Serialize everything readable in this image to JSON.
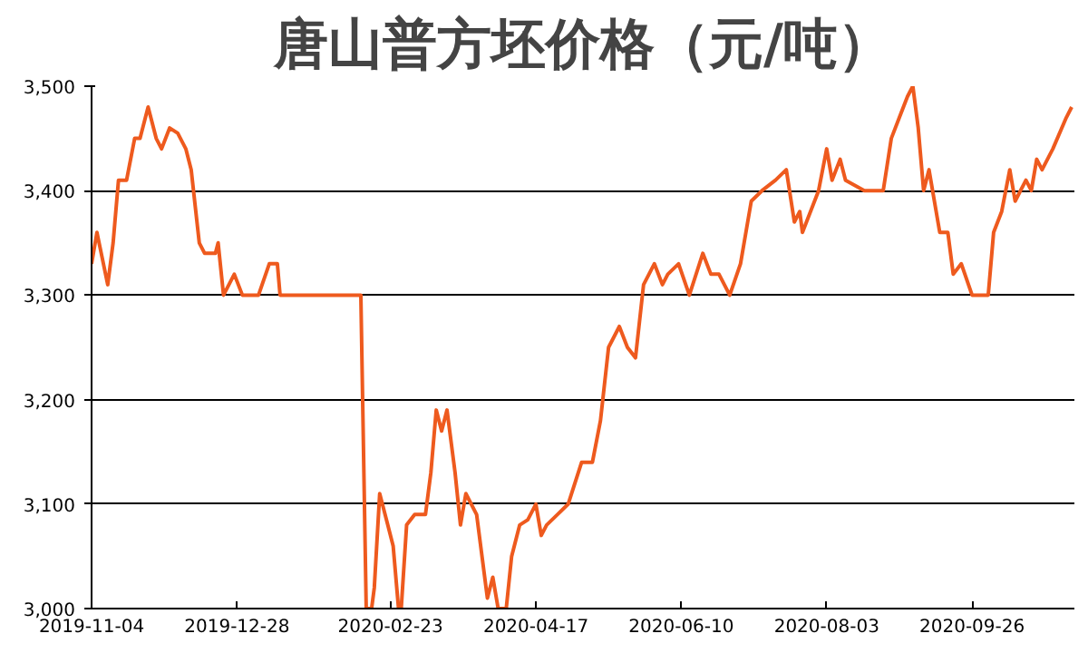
{
  "chart_data": {
    "type": "line",
    "title": "唐山普方坯价格（元/吨）",
    "x": [
      "2019-11-04",
      "2019-11-06",
      "2019-11-08",
      "2019-11-10",
      "2019-11-12",
      "2019-11-14",
      "2019-11-17",
      "2019-11-20",
      "2019-11-22",
      "2019-11-25",
      "2019-11-28",
      "2019-11-30",
      "2019-12-03",
      "2019-12-06",
      "2019-12-09",
      "2019-12-11",
      "2019-12-14",
      "2019-12-16",
      "2019-12-20",
      "2019-12-21",
      "2019-12-23",
      "2019-12-25",
      "2019-12-27",
      "2019-12-30",
      "2020-01-05",
      "2020-01-09",
      "2020-01-12",
      "2020-01-13",
      "2020-02-12",
      "2020-02-14",
      "2020-02-16",
      "2020-02-17",
      "2020-02-19",
      "2020-02-22",
      "2020-02-24",
      "2020-02-26",
      "2020-02-27",
      "2020-02-29",
      "2020-03-03",
      "2020-03-07",
      "2020-03-09",
      "2020-03-11",
      "2020-03-13",
      "2020-03-15",
      "2020-03-18",
      "2020-03-20",
      "2020-03-22",
      "2020-03-26",
      "2020-03-28",
      "2020-03-30",
      "2020-04-01",
      "2020-04-03",
      "2020-04-06",
      "2020-04-08",
      "2020-04-11",
      "2020-04-14",
      "2020-04-17",
      "2020-04-19",
      "2020-04-21",
      "2020-04-25",
      "2020-04-29",
      "2020-05-04",
      "2020-05-08",
      "2020-05-11",
      "2020-05-14",
      "2020-05-18",
      "2020-05-21",
      "2020-05-24",
      "2020-05-27",
      "2020-05-31",
      "2020-06-03",
      "2020-06-05",
      "2020-06-09",
      "2020-06-13",
      "2020-06-18",
      "2020-06-21",
      "2020-06-24",
      "2020-06-28",
      "2020-07-02",
      "2020-07-06",
      "2020-07-10",
      "2020-07-15",
      "2020-07-19",
      "2020-07-22",
      "2020-07-24",
      "2020-07-25",
      "2020-07-31",
      "2020-08-03",
      "2020-08-05",
      "2020-08-08",
      "2020-08-10",
      "2020-08-17",
      "2020-08-24",
      "2020-08-27",
      "2020-08-30",
      "2020-09-02",
      "2020-09-04",
      "2020-09-06",
      "2020-09-08",
      "2020-09-10",
      "2020-09-14",
      "2020-09-17",
      "2020-09-19",
      "2020-09-22",
      "2020-09-26",
      "2020-10-02",
      "2020-10-04",
      "2020-10-07",
      "2020-10-10",
      "2020-10-12",
      "2020-10-16",
      "2020-10-18",
      "2020-10-20",
      "2020-10-22",
      "2020-10-26",
      "2020-10-31",
      "2020-11-02"
    ],
    "series": [
      {
        "color": "#ee5a1e",
        "values": [
          3330,
          3360,
          3335,
          3310,
          3350,
          3410,
          3410,
          3450,
          3450,
          3480,
          3450,
          3440,
          3460,
          3455,
          3440,
          3420,
          3350,
          3340,
          3340,
          3350,
          3300,
          3310,
          3320,
          3300,
          3300,
          3330,
          3330,
          3300,
          3300,
          3000,
          3000,
          3020,
          3110,
          3080,
          3060,
          3000,
          3000,
          3080,
          3090,
          3090,
          3130,
          3190,
          3170,
          3190,
          3130,
          3080,
          3110,
          3090,
          3050,
          3010,
          3030,
          3000,
          3000,
          3050,
          3080,
          3085,
          3100,
          3070,
          3080,
          3090,
          3100,
          3140,
          3140,
          3180,
          3250,
          3270,
          3250,
          3240,
          3310,
          3330,
          3310,
          3320,
          3330,
          3300,
          3340,
          3320,
          3320,
          3300,
          3330,
          3390,
          3400,
          3410,
          3420,
          3370,
          3380,
          3360,
          3400,
          3440,
          3410,
          3430,
          3410,
          3400,
          3400,
          3450,
          3470,
          3490,
          3500,
          3460,
          3400,
          3420,
          3360,
          3360,
          3320,
          3330,
          3300,
          3300,
          3360,
          3380,
          3420,
          3390,
          3410,
          3400,
          3430,
          3420,
          3440,
          3470,
          3480
        ]
      }
    ],
    "xlim": [
      "2019-11-04",
      "2020-11-03"
    ],
    "xticks": [
      "2019-11-04",
      "2019-12-28",
      "2020-02-23",
      "2020-04-17",
      "2020-06-10",
      "2020-08-03",
      "2020-09-26"
    ],
    "ylim": [
      3000,
      3500
    ],
    "yticks": [
      {
        "value": 3000,
        "label": "3,000"
      },
      {
        "value": 3100,
        "label": "3,100"
      },
      {
        "value": 3200,
        "label": "3,200"
      },
      {
        "value": 3300,
        "label": "3,300"
      },
      {
        "value": 3400,
        "label": "3,400"
      },
      {
        "value": 3500,
        "label": "3,500"
      }
    ],
    "grid": "y",
    "line_style": "solid"
  }
}
